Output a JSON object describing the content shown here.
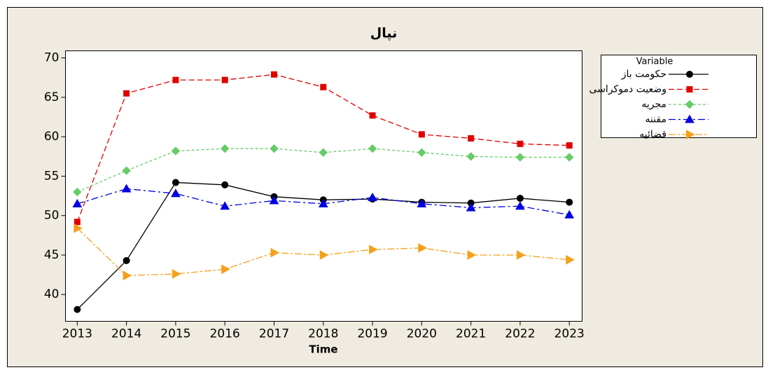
{
  "chart_data": {
    "type": "line",
    "title": "نپال",
    "xlabel": "Time",
    "x": [
      2013,
      2014,
      2015,
      2016,
      2017,
      2018,
      2019,
      2020,
      2021,
      2022,
      2023
    ],
    "xlim": [
      2012.76,
      2023.26
    ],
    "xticks": [
      2013,
      2014,
      2015,
      2016,
      2017,
      2018,
      2019,
      2020,
      2021,
      2022,
      2023
    ],
    "ylim": [
      36.6,
      70.9
    ],
    "yticks": [
      40,
      45,
      50,
      55,
      60,
      65,
      70
    ],
    "legend_title": "Variable",
    "legend": "upper right outside",
    "series": [
      {
        "name": "حکومت باز",
        "color": "#000000",
        "marker": "circle",
        "dash": "none",
        "values": [
          38.1,
          44.3,
          54.2,
          53.9,
          52.4,
          52.0,
          52.1,
          51.7,
          51.6,
          52.2,
          51.7
        ]
      },
      {
        "name": "وضعیت دموکراسی",
        "color": "#e00000",
        "marker": "square",
        "dash": "8,4",
        "values": [
          49.2,
          65.5,
          67.2,
          67.2,
          67.9,
          66.3,
          62.7,
          60.3,
          59.8,
          59.1,
          58.9
        ]
      },
      {
        "name": "مجریه",
        "color": "#66cc66",
        "marker": "diamond",
        "dash": "4,3",
        "values": [
          53.0,
          55.7,
          58.2,
          58.5,
          58.5,
          58.0,
          58.5,
          58.0,
          57.5,
          57.4,
          57.4
        ]
      },
      {
        "name": "مقننه",
        "color": "#0000e0",
        "marker": "triangle",
        "dash": "10,4,3,4",
        "values": [
          51.5,
          53.4,
          52.8,
          51.2,
          51.9,
          51.5,
          52.3,
          51.5,
          51.0,
          51.2,
          50.1
        ]
      },
      {
        "name": "قضائیه",
        "color": "#f5a01a",
        "marker": "triangle-right",
        "dash": "10,3,3,3",
        "values": [
          48.4,
          42.4,
          42.6,
          43.2,
          45.3,
          45.0,
          45.7,
          45.9,
          45.0,
          45.0,
          44.4
        ]
      }
    ]
  }
}
